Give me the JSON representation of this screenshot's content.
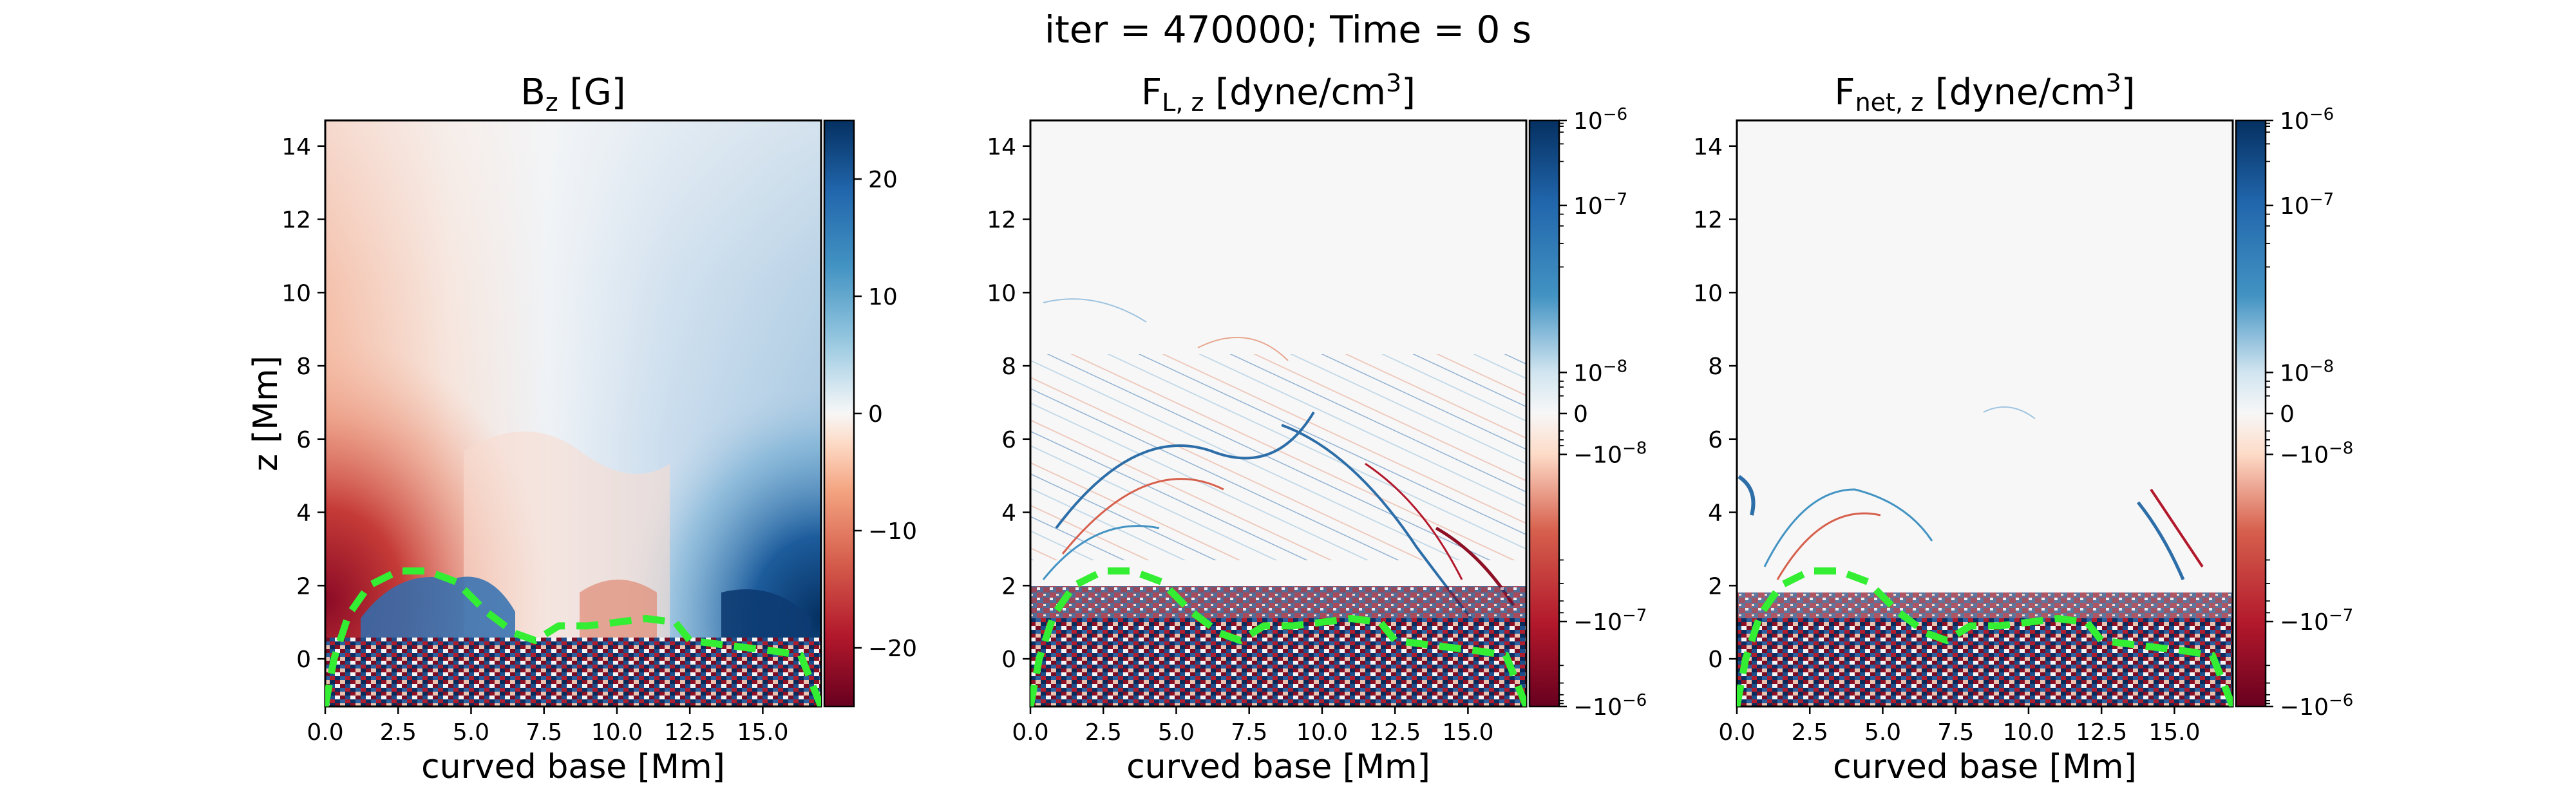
{
  "suptitle": "iter = 470000; Time = 0 s",
  "colors": {
    "neg_strong": "#67001f",
    "neg_mid": "#d6604d",
    "neutral": "#f7f7f7",
    "pos_mid": "#4393c3",
    "pos_strong": "#053061",
    "contour": "#33ee33"
  },
  "chart_data": [
    {
      "type": "heatmap",
      "title": "B",
      "title_sub": "z",
      "title_unit": " [G]",
      "xlabel": "curved base [Mm]",
      "ylabel": "z [Mm]",
      "xlim": [
        0,
        17
      ],
      "ylim": [
        -1.3,
        14.7
      ],
      "xticks": [
        0,
        2.5,
        5,
        7.5,
        10,
        12.5,
        15
      ],
      "xtick_labels": [
        "0.0",
        "2.5",
        "5.0",
        "7.5",
        "10.0",
        "12.5",
        "15.0"
      ],
      "yticks": [
        0,
        2,
        4,
        6,
        8,
        10,
        12,
        14
      ],
      "ytick_labels": [
        "0",
        "2",
        "4",
        "6",
        "8",
        "10",
        "12",
        "14"
      ],
      "colorbar": {
        "scale": "linear",
        "range": [
          -25,
          25
        ],
        "ticks": [
          -20,
          -10,
          0,
          10,
          20
        ],
        "tick_labels": [
          "−20",
          "−10",
          "0",
          "10",
          "20"
        ]
      },
      "contour": {
        "style": "dashed",
        "points": [
          [
            0,
            -1.3
          ],
          [
            0.3,
            0
          ],
          [
            0.8,
            1.2
          ],
          [
            1.5,
            2
          ],
          [
            2.5,
            2.4
          ],
          [
            3.5,
            2.4
          ],
          [
            4.5,
            2.1
          ],
          [
            5.5,
            1.3
          ],
          [
            6.5,
            0.7
          ],
          [
            7.2,
            0.5
          ],
          [
            8,
            0.9
          ],
          [
            9,
            0.9
          ],
          [
            10,
            1
          ],
          [
            11,
            1.1
          ],
          [
            12,
            1
          ],
          [
            12.5,
            0.5
          ],
          [
            13.5,
            0.4
          ],
          [
            14.5,
            0.3
          ],
          [
            15.5,
            0.2
          ],
          [
            16.3,
            0.1
          ],
          [
            17,
            -1.3
          ]
        ]
      }
    },
    {
      "type": "heatmap",
      "title": "F",
      "title_sub": "L, z",
      "title_unit": " [dyne/cm",
      "title_sup": "3",
      "title_end": "]",
      "xlabel": "curved base [Mm]",
      "xlim": [
        0,
        17
      ],
      "ylim": [
        -1.3,
        14.7
      ],
      "xticks": [
        0,
        2.5,
        5,
        7.5,
        10,
        12.5,
        15
      ],
      "xtick_labels": [
        "0.0",
        "2.5",
        "5.0",
        "7.5",
        "10.0",
        "12.5",
        "15.0"
      ],
      "yticks": [
        0,
        2,
        4,
        6,
        8,
        10,
        12,
        14
      ],
      "ytick_labels": [
        "0",
        "2",
        "4",
        "6",
        "8",
        "10",
        "12",
        "14"
      ],
      "colorbar": {
        "scale": "symlog",
        "major_ticks": [
          {
            "frac": 1.0,
            "base": "10",
            "exp": "−6"
          },
          {
            "frac": 0.855,
            "base": "10",
            "exp": "−7"
          },
          {
            "frac": 0.57,
            "base": "10",
            "exp": "−8"
          },
          {
            "frac": 0.5,
            "label": "0"
          },
          {
            "frac": 0.43,
            "base": "−10",
            "exp": "−8"
          },
          {
            "frac": 0.145,
            "base": "−10",
            "exp": "−7"
          },
          {
            "frac": 0.0,
            "base": "−10",
            "exp": "−6"
          }
        ]
      },
      "contour": {
        "style": "dashed",
        "points": [
          [
            0,
            -1.3
          ],
          [
            0.3,
            0
          ],
          [
            0.8,
            1.2
          ],
          [
            1.5,
            2
          ],
          [
            2.5,
            2.4
          ],
          [
            3.5,
            2.4
          ],
          [
            4.5,
            2.1
          ],
          [
            5.5,
            1.3
          ],
          [
            6.5,
            0.7
          ],
          [
            7.2,
            0.5
          ],
          [
            8,
            0.9
          ],
          [
            9,
            0.9
          ],
          [
            10,
            1
          ],
          [
            11,
            1.1
          ],
          [
            12,
            1
          ],
          [
            12.5,
            0.5
          ],
          [
            13.5,
            0.4
          ],
          [
            14.5,
            0.3
          ],
          [
            15.5,
            0.2
          ],
          [
            16.3,
            0.1
          ],
          [
            17,
            -1.3
          ]
        ]
      }
    },
    {
      "type": "heatmap",
      "title": "F",
      "title_sub": "net, z",
      "title_unit": " [dyne/cm",
      "title_sup": "3",
      "title_end": "]",
      "xlabel": "curved base [Mm]",
      "xlim": [
        0,
        17
      ],
      "ylim": [
        -1.3,
        14.7
      ],
      "xticks": [
        0,
        2.5,
        5,
        7.5,
        10,
        12.5,
        15
      ],
      "xtick_labels": [
        "0.0",
        "2.5",
        "5.0",
        "7.5",
        "10.0",
        "12.5",
        "15.0"
      ],
      "yticks": [
        0,
        2,
        4,
        6,
        8,
        10,
        12,
        14
      ],
      "ytick_labels": [
        "0",
        "2",
        "4",
        "6",
        "8",
        "10",
        "12",
        "14"
      ],
      "colorbar": {
        "scale": "symlog",
        "major_ticks": [
          {
            "frac": 1.0,
            "base": "10",
            "exp": "−6"
          },
          {
            "frac": 0.855,
            "base": "10",
            "exp": "−7"
          },
          {
            "frac": 0.57,
            "base": "10",
            "exp": "−8"
          },
          {
            "frac": 0.5,
            "label": "0"
          },
          {
            "frac": 0.43,
            "base": "−10",
            "exp": "−8"
          },
          {
            "frac": 0.145,
            "base": "−10",
            "exp": "−7"
          },
          {
            "frac": 0.0,
            "base": "−10",
            "exp": "−6"
          }
        ]
      },
      "contour": {
        "style": "dashed",
        "points": [
          [
            0,
            -1.3
          ],
          [
            0.3,
            0
          ],
          [
            0.8,
            1.2
          ],
          [
            1.5,
            2
          ],
          [
            2.5,
            2.4
          ],
          [
            3.5,
            2.4
          ],
          [
            4.5,
            2.1
          ],
          [
            5.5,
            1.3
          ],
          [
            6.5,
            0.7
          ],
          [
            7.2,
            0.5
          ],
          [
            8,
            0.9
          ],
          [
            9,
            0.9
          ],
          [
            10,
            1
          ],
          [
            11,
            1.1
          ],
          [
            12,
            1
          ],
          [
            12.5,
            0.5
          ],
          [
            13.5,
            0.4
          ],
          [
            14.5,
            0.3
          ],
          [
            15.5,
            0.2
          ],
          [
            16.3,
            0.1
          ],
          [
            17,
            -1.3
          ]
        ]
      }
    }
  ]
}
